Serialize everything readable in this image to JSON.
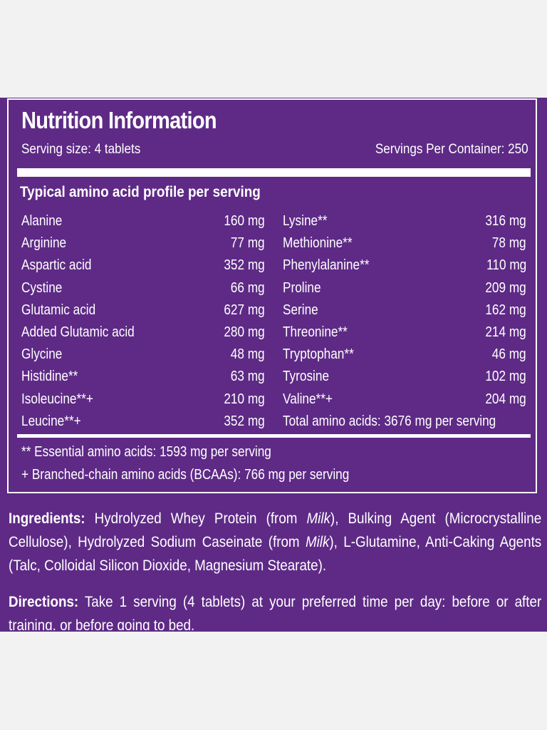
{
  "nutrition": {
    "title": "Nutrition Information",
    "serving_size": "Serving size: 4 tablets",
    "servings_per_container": "Servings Per Container: 250",
    "section_heading": "Typical amino acid profile per serving",
    "rows": [
      {
        "left_name": "Alanine",
        "left_value": "160 mg",
        "right_name": "Lysine**",
        "right_value": "316 mg"
      },
      {
        "left_name": "Arginine",
        "left_value": "77 mg",
        "right_name": "Methionine**",
        "right_value": "78 mg"
      },
      {
        "left_name": "Aspartic acid",
        "left_value": "352 mg",
        "right_name": "Phenylalanine**",
        "right_value": "110 mg"
      },
      {
        "left_name": "Cystine",
        "left_value": "66 mg",
        "right_name": "Proline",
        "right_value": "209 mg"
      },
      {
        "left_name": "Glutamic acid",
        "left_value": "627 mg",
        "right_name": "Serine",
        "right_value": "162 mg"
      },
      {
        "left_name": "Added Glutamic acid",
        "left_value": "280 mg",
        "right_name": "Threonine**",
        "right_value": "214 mg"
      },
      {
        "left_name": "Glycine",
        "left_value": "48 mg",
        "right_name": "Tryptophan**",
        "right_value": "46 mg"
      },
      {
        "left_name": "Histidine**",
        "left_value": "63 mg",
        "right_name": "Tyrosine",
        "right_value": "102 mg"
      },
      {
        "left_name": "Isoleucine**+",
        "left_value": "210 mg",
        "right_name": "Valine**+",
        "right_value": "204 mg"
      },
      {
        "left_name": "Leucine**+",
        "left_value": "352 mg",
        "right_name": "Total amino acids: 3676 mg per serving",
        "right_value": ""
      }
    ],
    "note_essential": "** Essential amino acids: 1593 mg per serving",
    "note_bcaa": "+ Branched-chain amino acids (BCAAs): 766 mg per serving"
  },
  "ingredients": {
    "label": "Ingredients:",
    "part1": " Hydrolyzed Whey Protein (from ",
    "milk1": "Milk",
    "part2": "), Bulking Agent (Microcrystalline Cellulose), Hydrolyzed Sodium Caseinate (from ",
    "milk2": "Milk",
    "part3": "), L-Glutamine, Anti-Caking Agents (Talc, Colloidal Silicon Dioxide, Magnesium Stearate)."
  },
  "directions": {
    "label": "Directions:",
    "text": " Take 1 serving (4 tablets) at your preferred time per day: before or after training, or before going to bed."
  },
  "colors": {
    "label_purple": "#5e2a86",
    "text": "#ffffff",
    "page_background": "#f2f2f2"
  }
}
